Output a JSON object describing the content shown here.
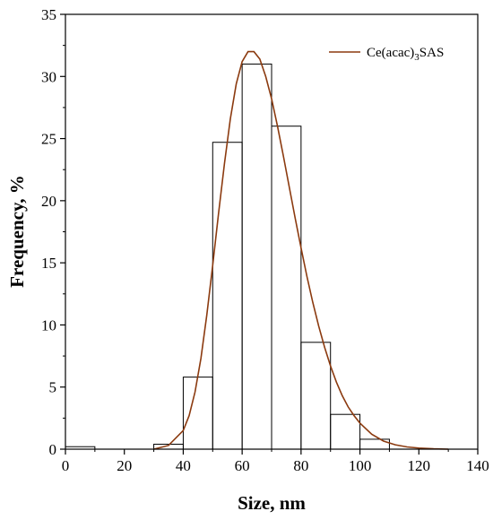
{
  "chart_data": {
    "type": "bar",
    "subtype": "histogram-with-fit",
    "xlabel": "Size, nm",
    "ylabel": "Frequency, %",
    "xlim": [
      0,
      140
    ],
    "ylim": [
      0,
      35
    ],
    "x_ticks": [
      0,
      20,
      40,
      60,
      80,
      100,
      120,
      140
    ],
    "y_ticks": [
      0,
      5,
      10,
      15,
      20,
      25,
      30,
      35
    ],
    "grid": false,
    "bins": [
      {
        "from": 0,
        "to": 10,
        "value": 0.2
      },
      {
        "from": 10,
        "to": 20,
        "value": 0
      },
      {
        "from": 20,
        "to": 30,
        "value": 0
      },
      {
        "from": 30,
        "to": 40,
        "value": 0.4
      },
      {
        "from": 40,
        "to": 50,
        "value": 5.8
      },
      {
        "from": 50,
        "to": 60,
        "value": 24.7
      },
      {
        "from": 60,
        "to": 70,
        "value": 31.0
      },
      {
        "from": 70,
        "to": 80,
        "value": 26.0
      },
      {
        "from": 80,
        "to": 90,
        "value": 8.6
      },
      {
        "from": 90,
        "to": 100,
        "value": 2.8
      },
      {
        "from": 100,
        "to": 110,
        "value": 0.8
      },
      {
        "from": 110,
        "to": 120,
        "value": 0
      },
      {
        "from": 120,
        "to": 130,
        "value": 0
      },
      {
        "from": 130,
        "to": 140,
        "value": 0
      }
    ],
    "fit_curve": {
      "name": "Ce(acac)3SAS",
      "legend_main": "Ce(acac)",
      "legend_sub": "3",
      "legend_tail": "SAS",
      "color": "#8b3a0f",
      "peak_x": 64,
      "peak_y": 32,
      "x": [
        30,
        35,
        40,
        42,
        44,
        46,
        48,
        50,
        52,
        54,
        56,
        58,
        60,
        62,
        64,
        66,
        68,
        70,
        72,
        74,
        76,
        78,
        80,
        82,
        84,
        86,
        88,
        90,
        92,
        94,
        96,
        98,
        100,
        104,
        108,
        112,
        116,
        120,
        125,
        130
      ],
      "y": [
        0,
        0.3,
        1.5,
        2.7,
        4.6,
        7.3,
        10.8,
        14.8,
        19.0,
        23.0,
        26.6,
        29.4,
        31.2,
        32.0,
        32.0,
        31.4,
        30.0,
        28.2,
        26.0,
        23.6,
        21.1,
        18.6,
        16.2,
        13.9,
        11.8,
        9.9,
        8.2,
        6.7,
        5.4,
        4.3,
        3.4,
        2.7,
        2.1,
        1.2,
        0.65,
        0.35,
        0.18,
        0.09,
        0.03,
        0.0
      ]
    },
    "legend_position": "top-right"
  },
  "colors": {
    "bar_edge": "#000000",
    "axis": "#000000"
  }
}
